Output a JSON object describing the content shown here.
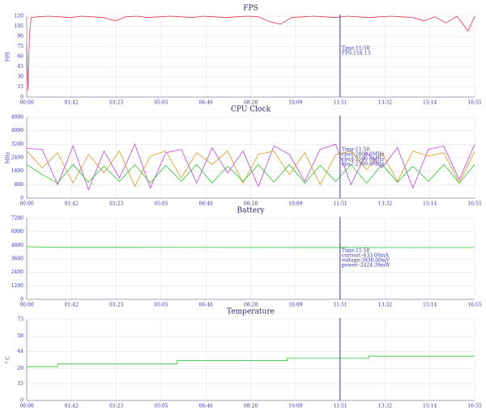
{
  "chart_data": [
    {
      "type": "line",
      "title": "FPS",
      "y_label": "FPS",
      "x": [
        0,
        3,
        6,
        10,
        25,
        50,
        75,
        100,
        125,
        150,
        175,
        200,
        225,
        250,
        275,
        300,
        325,
        350,
        375,
        400,
        425,
        450,
        475,
        500,
        525,
        550,
        575,
        600,
        625,
        650,
        675,
        700,
        725,
        750,
        775,
        800,
        825,
        850,
        875,
        900,
        925,
        950,
        975,
        1000,
        1015
      ],
      "series": [
        {
          "name": "FPS",
          "color": "#e8344e",
          "values": [
            75,
            10,
            90,
            118,
            119,
            120,
            119,
            118,
            120,
            119,
            118,
            113,
            119,
            120,
            118,
            119,
            120,
            119,
            118,
            120,
            119,
            118,
            119,
            120,
            119,
            112,
            108,
            118,
            119,
            120,
            119,
            118,
            120,
            119,
            118,
            119,
            120,
            119,
            118,
            113,
            119,
            110,
            120,
            98,
            120
          ]
        }
      ],
      "xlim": [
        0,
        1015
      ],
      "xticks": [
        {
          "value": 0,
          "label": "00:00"
        },
        {
          "value": 101.5,
          "label": "01:42"
        },
        {
          "value": 203,
          "label": "03:23"
        },
        {
          "value": 304.5,
          "label": "05:05"
        },
        {
          "value": 406,
          "label": "06:46"
        },
        {
          "value": 507.5,
          "label": "08:28"
        },
        {
          "value": 609,
          "label": "10:09"
        },
        {
          "value": 710.5,
          "label": "11:51"
        },
        {
          "value": 812,
          "label": "13:32"
        },
        {
          "value": 913.5,
          "label": "15:14"
        },
        {
          "value": 1015,
          "label": "16:55"
        }
      ],
      "ylim": [
        0,
        120
      ],
      "yticks": [
        0,
        15,
        30,
        45,
        60,
        75,
        90,
        105,
        120
      ],
      "grid": true,
      "cursor_x": 710,
      "cursor_color": "#3333cc",
      "annotations": [
        "Time:11:50",
        "FPS:118.13"
      ]
    },
    {
      "type": "line",
      "title": "CPU Clock",
      "y_label": "MHz",
      "x": [
        0,
        35,
        70,
        105,
        140,
        175,
        210,
        245,
        280,
        315,
        350,
        385,
        420,
        455,
        490,
        525,
        560,
        595,
        630,
        665,
        700,
        735,
        770,
        805,
        840,
        875,
        910,
        945,
        980,
        1015
      ],
      "series": [
        {
          "name": "cpu0",
          "color": "#c040e0",
          "values": [
            2950,
            2900,
            800,
            3100,
            500,
            2800,
            1200,
            3200,
            600,
            2700,
            2900,
            900,
            3000,
            1500,
            2800,
            700,
            3100,
            2600,
            1000,
            2900,
            3200,
            800,
            2700,
            1800,
            3000,
            600,
            2900,
            3100,
            1100,
            3200
          ]
        },
        {
          "name": "cpu4",
          "color": "#d89a20",
          "values": [
            2800,
            1800,
            2700,
            900,
            2600,
            1500,
            2800,
            700,
            2500,
            2800,
            1200,
            2700,
            2000,
            2800,
            900,
            2600,
            2800,
            1400,
            2700,
            800,
            2600,
            2800,
            1700,
            2700,
            1000,
            2800,
            2500,
            2700,
            900,
            2800
          ]
        },
        {
          "name": "cpu7",
          "color": "#30c030",
          "values": [
            2000,
            1400,
            900,
            2000,
            950,
            1900,
            1000,
            2000,
            900,
            1950,
            1000,
            2000,
            900,
            1900,
            1000,
            2000,
            950,
            2000,
            900,
            1950,
            1000,
            2000,
            900,
            2000,
            950,
            1900,
            1000,
            2000,
            900,
            2000
          ]
        }
      ],
      "xlim": [
        0,
        1015
      ],
      "xticks": [
        {
          "value": 0,
          "label": "00:00"
        },
        {
          "value": 101.5,
          "label": "01:42"
        },
        {
          "value": 203,
          "label": "03:23"
        },
        {
          "value": 304.5,
          "label": "05:05"
        },
        {
          "value": 406,
          "label": "06:46"
        },
        {
          "value": 507.5,
          "label": "08:28"
        },
        {
          "value": 609,
          "label": "10:09"
        },
        {
          "value": 710.5,
          "label": "11:51"
        },
        {
          "value": 812,
          "label": "13:32"
        },
        {
          "value": 913.5,
          "label": "15:14"
        },
        {
          "value": 1015,
          "label": "16:55"
        }
      ],
      "ylim": [
        0,
        4800
      ],
      "yticks": [
        0,
        800,
        1600,
        2400,
        3200,
        4000,
        4800
      ],
      "grid": true,
      "cursor_x": 710,
      "cursor_color": "#3333cc",
      "annotations": [
        "Time:11:50",
        "cpu0:2800.0MHz",
        "cpu4:2500.0MHz",
        "cpu7:2300.0MHz"
      ]
    },
    {
      "type": "line",
      "title": "Battery",
      "y_label": "",
      "x": [
        0,
        70,
        1015
      ],
      "series": [
        {
          "name": "current",
          "color": "#30c030",
          "values": [
            4680,
            4620,
            4610
          ]
        }
      ],
      "xlim": [
        0,
        1015
      ],
      "xticks": [
        {
          "value": 0,
          "label": "00:00"
        },
        {
          "value": 101.5,
          "label": "01:42"
        },
        {
          "value": 203,
          "label": "03:23"
        },
        {
          "value": 304.5,
          "label": "05:05"
        },
        {
          "value": 406,
          "label": "06:46"
        },
        {
          "value": 507.5,
          "label": "08:28"
        },
        {
          "value": 609,
          "label": "10:09"
        },
        {
          "value": 710.5,
          "label": "11:51"
        },
        {
          "value": 812,
          "label": "13:32"
        },
        {
          "value": 913.5,
          "label": "15:14"
        },
        {
          "value": 1015,
          "label": "16:55"
        }
      ],
      "ylim": [
        0,
        7200
      ],
      "yticks": [
        0,
        1200,
        2400,
        3600,
        4800,
        6000,
        7200
      ],
      "grid": true,
      "cursor_x": 710,
      "cursor_color": "#3333cc",
      "annotations": [
        "Time:11:50",
        "current:-633.00mA",
        "voltage:3830.00mV",
        "power:-2424.39mW"
      ]
    },
    {
      "type": "line",
      "title": "Temperature",
      "y_label": "° C",
      "x": [
        0,
        70,
        70,
        340,
        340,
        590,
        590,
        775,
        775,
        1015
      ],
      "series": [
        {
          "name": "temperature",
          "color": "#30c030",
          "values": [
            30.5,
            30.5,
            33,
            33,
            36,
            36,
            38,
            38,
            40,
            40
          ]
        }
      ],
      "xlim": [
        0,
        1015
      ],
      "xticks": [
        {
          "value": 0,
          "label": "00:00"
        },
        {
          "value": 101.5,
          "label": "01:42"
        },
        {
          "value": 203,
          "label": "03:23"
        },
        {
          "value": 304.5,
          "label": "05:05"
        },
        {
          "value": 406,
          "label": "06:46"
        },
        {
          "value": 507.5,
          "label": "08:28"
        },
        {
          "value": 609,
          "label": "10:09"
        },
        {
          "value": 710.5,
          "label": "11:51"
        },
        {
          "value": 812,
          "label": "13:32"
        },
        {
          "value": 913.5,
          "label": "15:14"
        },
        {
          "value": 1015,
          "label": "16:55"
        }
      ],
      "ylim": [
        0,
        73
      ],
      "yticks": [
        0,
        15,
        29,
        44,
        58,
        73
      ],
      "grid": true,
      "cursor_x": 710,
      "cursor_color": "#3333cc",
      "annotations": []
    }
  ]
}
